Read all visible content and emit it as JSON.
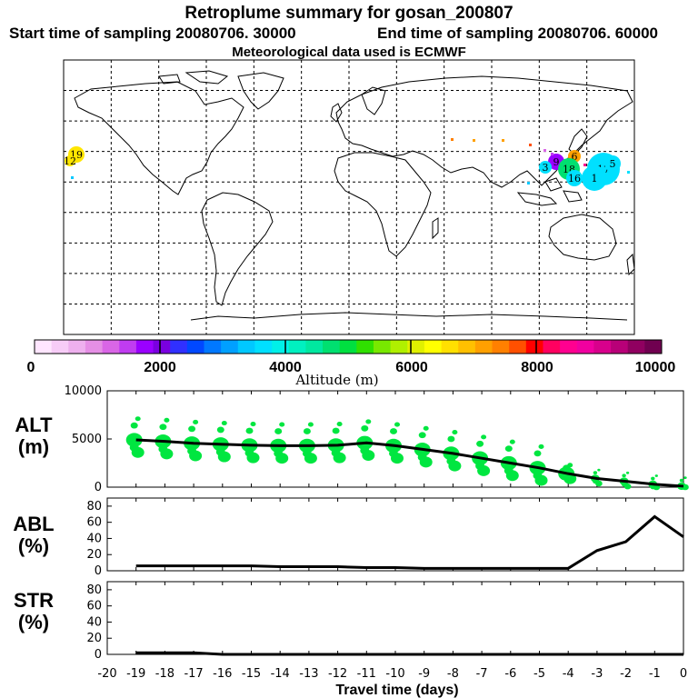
{
  "header": {
    "title": "Retroplume summary for gosan_200807",
    "start_label": "Start time of sampling 20080706. 30000",
    "end_label": "End time of sampling 20080706. 60000",
    "met_label": "Meteorological data used is ECMWF"
  },
  "colorbar": {
    "label": "Altitude (m)",
    "ticks": [
      "0",
      "2000",
      "4000",
      "6000",
      "8000",
      "10000"
    ],
    "colors": [
      "#ffe6ff",
      "#f7ccf7",
      "#eeb0ee",
      "#e58fe5",
      "#d966e6",
      "#c03cf0",
      "#9a00ff",
      "#7a00e0",
      "#3030ff",
      "#0048ff",
      "#0078ff",
      "#00a0ff",
      "#00c8ff",
      "#00e0ff",
      "#00f0e8",
      "#00f0c0",
      "#00e8a0",
      "#00e070",
      "#00e040",
      "#30e000",
      "#78e800",
      "#b0f000",
      "#e0f000",
      "#ffff00",
      "#ffe000",
      "#ffc000",
      "#ffa000",
      "#ff8000",
      "#ff5000",
      "#ff0000",
      "#ff0060",
      "#ff0090",
      "#f000a0",
      "#d8008c",
      "#b80078",
      "#900060",
      "#700050"
    ]
  },
  "map": {
    "clusters": [
      {
        "label": "19",
        "color": "#ffe600"
      },
      {
        "label": "12",
        "color": "#ffe600"
      },
      {
        "label": "6",
        "color": "#ffa000"
      },
      {
        "label": "9",
        "color": "#9a00ff"
      },
      {
        "label": "3",
        "color": "#00e0ff"
      },
      {
        "label": "18",
        "color": "#00e070"
      },
      {
        "label": "16",
        "color": "#00e0ff"
      },
      {
        "label": "17",
        "color": "#00e0ff"
      },
      {
        "label": "1",
        "color": "#00e0ff"
      },
      {
        "label": "5",
        "color": "#00e0ff"
      }
    ]
  },
  "chart_data": [
    {
      "type": "line",
      "panel_label": "ALT\n(m)",
      "panel_label_lines": [
        "ALT",
        "(m)"
      ],
      "xlabel": "Travel time (days)",
      "x": [
        -19,
        -18,
        -17,
        -16,
        -15,
        -14,
        -13,
        -12,
        -11,
        -10,
        -9,
        -8,
        -7,
        -6,
        -5,
        -4,
        -3,
        -2,
        -1,
        0
      ],
      "series": [
        {
          "name": "mean altitude",
          "values": [
            4900,
            4750,
            4550,
            4450,
            4350,
            4300,
            4300,
            4350,
            4600,
            4300,
            3900,
            3500,
            3000,
            2500,
            2000,
            1400,
            900,
            600,
            300,
            100
          ]
        }
      ],
      "ylim": [
        0,
        10000
      ],
      "yticks": [
        "10000",
        "5000",
        "0"
      ],
      "scatter_color": "#00e640"
    },
    {
      "type": "line",
      "panel_label_lines": [
        "ABL",
        "(%)"
      ],
      "x": [
        -19,
        -18,
        -17,
        -16,
        -15,
        -14,
        -13,
        -12,
        -11,
        -10,
        -9,
        -8,
        -7,
        -6,
        -5,
        -4,
        -3,
        -2,
        -1,
        0
      ],
      "series": [
        {
          "name": "ABL fraction",
          "values": [
            6,
            6,
            6,
            6,
            6,
            5,
            5,
            5,
            4,
            4,
            3,
            3,
            3,
            3,
            3,
            3,
            25,
            36,
            67,
            42
          ]
        }
      ],
      "ylim": [
        0,
        90
      ],
      "yticks": [
        "80",
        "60",
        "40",
        "20",
        "0"
      ]
    },
    {
      "type": "line",
      "panel_label_lines": [
        "STR",
        "(%)"
      ],
      "x": [
        -19,
        -18,
        -17,
        -16,
        -15,
        -14,
        -13,
        -12,
        -11,
        -10,
        -9,
        -8,
        -7,
        -6,
        -5,
        -4,
        -3,
        -2,
        -1,
        0
      ],
      "series": [
        {
          "name": "stratosphere fraction",
          "values": [
            2,
            2,
            2,
            0,
            0,
            0,
            0,
            0,
            0,
            0,
            0,
            0,
            0,
            0,
            0,
            0,
            0,
            0,
            0,
            0
          ]
        }
      ],
      "ylim": [
        0,
        90
      ],
      "yticks": [
        "80",
        "60",
        "40",
        "20",
        "0"
      ],
      "xticks": [
        "-20",
        "-19",
        "-18",
        "-17",
        "-16",
        "-15",
        "-14",
        "-13",
        "-12",
        "-11",
        "-10",
        "-9",
        "-8",
        "-7",
        "-6",
        "-5",
        "-4",
        "-3",
        "-2",
        "-1",
        "0"
      ],
      "xlabel": "Travel time (days)"
    }
  ]
}
